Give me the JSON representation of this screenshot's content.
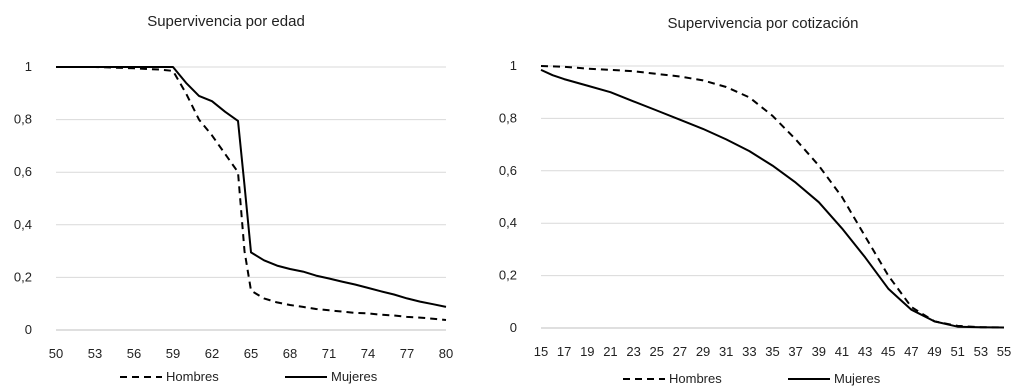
{
  "chart_data": [
    {
      "type": "line",
      "title": "Supervivencia por edad",
      "xlabel": "",
      "ylabel": "",
      "x_ticks": [
        "50",
        "53",
        "56",
        "59",
        "62",
        "65",
        "68",
        "71",
        "74",
        "77",
        "80"
      ],
      "y_ticks": [
        "0",
        "0,2",
        "0,4",
        "0,6",
        "0,8",
        "1"
      ],
      "xlim": [
        50,
        80
      ],
      "ylim": [
        0,
        1
      ],
      "grid": true,
      "legend_position": "bottom",
      "series": [
        {
          "name": "Hombres",
          "style": "dashed",
          "color": "#000000",
          "x": [
            50,
            53,
            56,
            58,
            59,
            60,
            61,
            62,
            63,
            64,
            64.5,
            65,
            66,
            67,
            68,
            69,
            70,
            71,
            72,
            73,
            74,
            75,
            76,
            77,
            78,
            79,
            80
          ],
          "y": [
            1,
            1,
            0.995,
            0.99,
            0.985,
            0.9,
            0.8,
            0.74,
            0.67,
            0.6,
            0.3,
            0.15,
            0.12,
            0.105,
            0.095,
            0.088,
            0.08,
            0.075,
            0.07,
            0.065,
            0.063,
            0.058,
            0.055,
            0.05,
            0.047,
            0.043,
            0.038
          ]
        },
        {
          "name": "Mujeres",
          "style": "solid",
          "color": "#000000",
          "x": [
            50,
            53,
            56,
            58,
            59,
            60,
            61,
            62,
            63,
            64,
            64.5,
            65,
            66,
            67,
            68,
            69,
            70,
            71,
            72,
            73,
            74,
            75,
            76,
            77,
            78,
            79,
            80
          ],
          "y": [
            1,
            1,
            1,
            1,
            1,
            0.94,
            0.89,
            0.87,
            0.83,
            0.795,
            0.55,
            0.295,
            0.265,
            0.245,
            0.232,
            0.222,
            0.207,
            0.196,
            0.184,
            0.173,
            0.16,
            0.147,
            0.135,
            0.12,
            0.108,
            0.098,
            0.088
          ]
        }
      ]
    },
    {
      "type": "line",
      "title": "Supervivencia por cotización",
      "xlabel": "",
      "ylabel": "",
      "x_ticks": [
        "15",
        "17",
        "19",
        "21",
        "23",
        "25",
        "27",
        "29",
        "31",
        "33",
        "35",
        "37",
        "39",
        "41",
        "43",
        "45",
        "47",
        "49",
        "51",
        "53",
        "55"
      ],
      "y_ticks": [
        "0",
        "0,2",
        "0,4",
        "0,6",
        "0,8",
        "1"
      ],
      "xlim": [
        15,
        55
      ],
      "ylim": [
        0,
        1
      ],
      "grid": true,
      "legend_position": "bottom",
      "series": [
        {
          "name": "Hombres",
          "style": "dashed",
          "color": "#000000",
          "x": [
            15,
            17,
            19,
            21,
            23,
            25,
            27,
            29,
            31,
            33,
            35,
            37,
            39,
            41,
            43,
            45,
            47,
            49,
            51,
            53,
            55
          ],
          "y": [
            1,
            0.997,
            0.99,
            0.985,
            0.98,
            0.97,
            0.96,
            0.945,
            0.92,
            0.88,
            0.81,
            0.72,
            0.62,
            0.5,
            0.35,
            0.2,
            0.08,
            0.025,
            0.008,
            0.003,
            0.002
          ]
        },
        {
          "name": "Mujeres",
          "style": "solid",
          "color": "#000000",
          "x": [
            15,
            16,
            17,
            19,
            21,
            23,
            25,
            27,
            29,
            31,
            33,
            35,
            37,
            39,
            41,
            43,
            45,
            46,
            47,
            49,
            51,
            53,
            55
          ],
          "y": [
            0.985,
            0.965,
            0.95,
            0.925,
            0.9,
            0.865,
            0.83,
            0.795,
            0.76,
            0.72,
            0.675,
            0.62,
            0.555,
            0.48,
            0.38,
            0.27,
            0.15,
            0.11,
            0.07,
            0.025,
            0.005,
            0.003,
            0.002
          ]
        }
      ]
    }
  ]
}
